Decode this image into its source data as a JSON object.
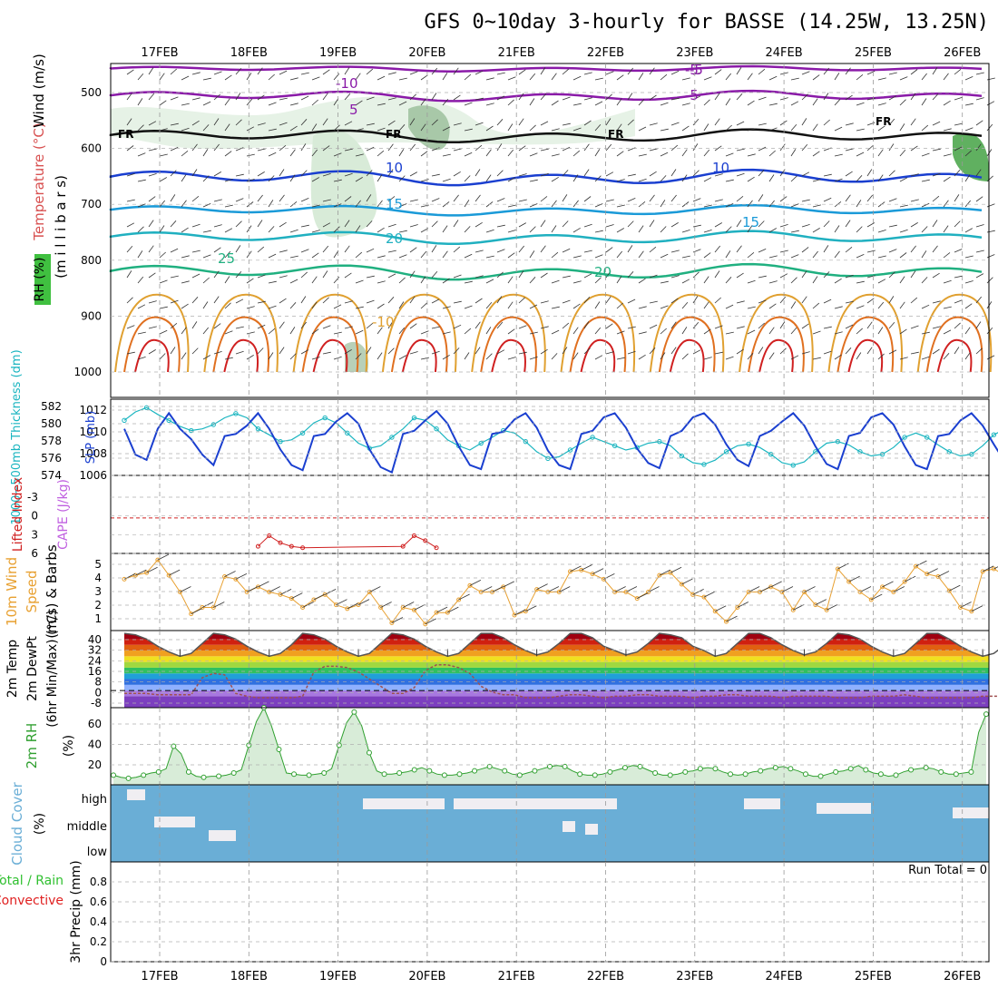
{
  "header": {
    "title": "GFS 0~10day 3-hourly for BASSE (14.25W, 13.25N)"
  },
  "axes": {
    "date_labels": [
      "17FEB",
      "18FEB",
      "19FEB",
      "20FEB",
      "21FEB",
      "22FEB",
      "23FEB",
      "24FEB",
      "25FEB",
      "26FEB"
    ],
    "pressure_ticks": [
      "500",
      "600",
      "700",
      "800",
      "900",
      "1000"
    ],
    "thickness_ticks": [
      "582",
      "580",
      "578",
      "576",
      "574"
    ],
    "slp_ticks": [
      "1012",
      "1010",
      "1008",
      "1006"
    ],
    "li_ticks": [
      "-3",
      "0",
      "3",
      "6"
    ],
    "wind_ticks": [
      "5",
      "4",
      "3",
      "2",
      "1"
    ],
    "temp_ticks": [
      "40",
      "32",
      "24",
      "16",
      "8",
      "0",
      "-8"
    ],
    "rh_ticks": [
      "60",
      "40",
      "20"
    ],
    "cloud_levels": [
      "high",
      "middle",
      "low"
    ],
    "precip_ticks": [
      "0.8",
      "0.6",
      "0.4",
      "0.2",
      "0"
    ]
  },
  "panel_labels": {
    "upper_rh": "RH (%)",
    "upper_temp": "Temperature (°C)",
    "upper_wind": "Wind (m/s)",
    "upper_units": "(m i l l i b a r s)",
    "thickness": "1000~500mb Thickness (dm)",
    "slp": "SLP (mb)",
    "lifted": "Lifted Index",
    "cape": "CAPE (J/kg)",
    "wind10_a": "10m Wind",
    "wind10_b": "Speed",
    "wind10_c": "(m/s) & Barbs",
    "temp_a": "2m Temp",
    "temp_b": "2m DewPt",
    "temp_c": "(6hr Min/Max) (°C)",
    "rh2m_a": "2m RH",
    "rh2m_b": "(%)",
    "cloud_a": "Cloud Cover",
    "cloud_b": "(%)",
    "precip_a": "Total / Rain",
    "precip_b": "Convective",
    "precip_c": "3hr Precip (mm)"
  },
  "contour_labels": {
    "freezing": "FR",
    "temps": [
      "-10",
      "-5",
      "5",
      "10",
      "15",
      "20",
      "25",
      "-10",
      "-5",
      "-5",
      "10",
      "15",
      "20"
    ]
  },
  "run_total": "Run Total = 0",
  "colors": {
    "slp": "#1a3fd0",
    "thickness": "#1ab5c0",
    "lifted_index": "#d02020",
    "wind_speed": "#e8a030",
    "temp_line": "#555555",
    "dewpoint": "#a05050",
    "rh": "#30a030",
    "cloud": "#6aaed6"
  },
  "chart_data": [
    {
      "type": "line",
      "name": "sea level pressure",
      "x_unit": "day offset from 17FEB 00Z",
      "values": [
        1010.5,
        1008.0,
        1007.5,
        1010.5,
        1012.0,
        1010.5,
        1009.5,
        1008.0,
        1007.0,
        1009.8,
        1010.0,
        1010.8,
        1012.0,
        1010.5,
        1008.5,
        1007.0,
        1006.5,
        1009.8,
        1010.0,
        1011.2,
        1012.0,
        1011.0,
        1008.5,
        1006.8,
        1006.3,
        1010.0,
        1010.3,
        1011.3,
        1012.2,
        1011.0,
        1008.8,
        1007.0,
        1006.6,
        1010.0,
        1010.2,
        1011.4,
        1012.0,
        1010.6,
        1008.4,
        1007.0,
        1006.6,
        1010.0,
        1010.3,
        1011.6,
        1012.0,
        1010.6,
        1008.6,
        1007.2,
        1006.7,
        1009.8,
        1010.3,
        1011.6,
        1012.0,
        1010.9,
        1009.0,
        1007.5,
        1006.9,
        1009.8,
        1010.3,
        1011.2,
        1012.0,
        1010.8,
        1008.8,
        1007.1,
        1006.6,
        1009.8,
        1010.1,
        1011.6,
        1012.0,
        1010.9,
        1008.8,
        1007.0,
        1006.6,
        1009.8,
        1010.0,
        1011.3,
        1012.0,
        1010.8,
        1009.0,
        1007.3,
        1007.0,
        1010.0,
        1010.5,
        1011.5
      ],
      "ylim": [
        1006,
        1013
      ]
    },
    {
      "type": "line",
      "name": "1000~500mb thickness",
      "values": [
        580.5,
        581.5,
        582.0,
        581.2,
        580.5,
        579.8,
        579.3,
        579.5,
        580.0,
        580.8,
        581.3,
        580.8,
        579.5,
        578.8,
        578.0,
        578.2,
        579.0,
        580.2,
        580.8,
        580.2,
        579.0,
        577.8,
        577.2,
        577.5,
        578.5,
        579.5,
        580.8,
        580.5,
        579.5,
        578.2,
        577.5,
        577.0,
        577.8,
        578.5,
        579.3,
        579.0,
        578.0,
        576.8,
        576.0,
        576.2,
        577.0,
        577.8,
        578.5,
        578.0,
        577.5,
        577.0,
        577.3,
        577.8,
        578.0,
        577.5,
        576.3,
        575.5,
        575.3,
        575.8,
        576.8,
        577.5,
        577.7,
        577.3,
        576.5,
        575.5,
        575.2,
        575.6,
        576.8,
        577.8,
        578.0,
        577.6,
        576.8,
        576.3,
        576.5,
        577.3,
        578.5,
        579.0,
        578.5,
        577.6,
        576.8,
        576.3,
        576.5,
        577.5,
        578.8,
        579.5,
        580.0,
        579.3,
        578.2,
        577.2
      ],
      "ylim": [
        574,
        583
      ]
    },
    {
      "type": "line",
      "name": "lifted index",
      "values": [
        null,
        null,
        null,
        null,
        null,
        null,
        null,
        null,
        null,
        null,
        null,
        null,
        5.0,
        3.5,
        4.5,
        5.0,
        5.2,
        null,
        null,
        null,
        null,
        null,
        null,
        null,
        null,
        5.0,
        3.5,
        4.2,
        5.2
      ],
      "ylim": [
        -5,
        6
      ]
    },
    {
      "type": "line",
      "name": "10m wind speed",
      "values": [
        4.0,
        4.3,
        4.5,
        5.5,
        4.3,
        3.0,
        1.3,
        1.8,
        1.8,
        4.2,
        4.0,
        3.0,
        3.4,
        3.0,
        2.8,
        2.5,
        1.8,
        2.4,
        2.8,
        2.0,
        1.7,
        2.0,
        3.0,
        1.8,
        0.6,
        1.8,
        1.6,
        0.5,
        1.4,
        1.4,
        2.4,
        3.5,
        3.0,
        3.0,
        3.4,
        1.2,
        1.5,
        3.2,
        3.0,
        3.0,
        4.6,
        4.7,
        4.4,
        4.0,
        3.0,
        3.0,
        2.5,
        3.0,
        4.3,
        4.5,
        3.6,
        2.8,
        2.6,
        1.5,
        0.7,
        1.8,
        3.0,
        3.0,
        3.4,
        3.0,
        1.6,
        3.0,
        2.0,
        1.6,
        4.8,
        3.8,
        3.0,
        2.4,
        3.4,
        3.0,
        3.8,
        5.0,
        4.4,
        4.2,
        3.1,
        1.8,
        1.5,
        4.6,
        4.8,
        4.3,
        3.0,
        2.0,
        2.8,
        1.6
      ],
      "ylim": [
        0,
        6
      ]
    },
    {
      "type": "line",
      "name": "2m temperature",
      "values": [
        40,
        39,
        36,
        31,
        27,
        24,
        26,
        33,
        40,
        39,
        36,
        31,
        27,
        24,
        26,
        32,
        40,
        39,
        36,
        31,
        27,
        24,
        26,
        33,
        40,
        39,
        36,
        31,
        27,
        24,
        26,
        33,
        40,
        40,
        37,
        32,
        28,
        25,
        27,
        33,
        40,
        40,
        37,
        31,
        28,
        25,
        27,
        33,
        40,
        39,
        37,
        31,
        28,
        24,
        26,
        33,
        40,
        40,
        37,
        32,
        28,
        25,
        27,
        33,
        40,
        39,
        36,
        31,
        27,
        24,
        26,
        33,
        40,
        40,
        36,
        31,
        27,
        24,
        26,
        32,
        40,
        39,
        36,
        30,
        26,
        24
      ],
      "ylim": [
        -12,
        42
      ]
    },
    {
      "type": "line",
      "name": "2m dewpoint",
      "values": [
        -2,
        -2,
        -2,
        -3,
        -3,
        -3,
        -3,
        9,
        12,
        11,
        -2,
        -4,
        -5,
        -5,
        -5,
        -5,
        -4,
        13,
        17,
        17,
        16,
        13,
        8,
        3,
        -2,
        -2,
        2,
        14,
        18,
        18,
        16,
        12,
        3,
        -1,
        -3,
        -3,
        -5,
        -5,
        -5,
        -4,
        -3,
        -3,
        -4,
        -5,
        -4,
        -4,
        -3,
        -3,
        -4,
        -4,
        -4,
        -5,
        -4,
        -4,
        -3,
        -3,
        -4,
        -4,
        -4,
        -5,
        -4,
        -4,
        -4,
        -4,
        -5,
        -5,
        -5,
        -4,
        -4,
        -4,
        -3,
        -4,
        -5,
        -5,
        -5,
        -5,
        -5,
        -4,
        -4,
        -4,
        -5,
        -3,
        1,
        10,
        14
      ],
      "ylim": [
        -12,
        42
      ]
    },
    {
      "type": "area",
      "name": "2m relative humidity",
      "values": [
        9,
        7,
        6,
        7,
        9,
        11,
        12,
        15,
        36,
        29,
        12,
        8,
        7,
        8,
        8,
        9,
        11,
        14,
        37,
        59,
        72,
        55,
        33,
        11,
        10,
        9,
        9,
        10,
        11,
        15,
        37,
        58,
        68,
        55,
        30,
        13,
        10,
        10,
        11,
        12,
        14,
        16,
        13,
        10,
        9,
        9,
        10,
        11,
        13,
        15,
        17,
        15,
        13,
        10,
        9,
        11,
        13,
        15,
        17,
        18,
        17,
        13,
        10,
        9,
        9,
        10,
        12,
        14,
        16,
        18,
        17,
        14,
        11,
        9,
        9,
        10,
        12,
        13,
        15,
        16,
        15,
        12,
        10,
        9,
        10,
        12,
        13,
        15,
        16,
        17,
        15,
        13,
        10,
        8,
        8,
        10,
        12,
        13,
        15,
        18,
        14,
        11,
        10,
        8,
        9,
        12,
        14,
        15,
        16,
        15,
        12,
        10,
        10,
        11,
        12,
        49,
        66
      ],
      "ylim": [
        0,
        70
      ]
    },
    {
      "type": "bar",
      "name": "3hr precipitation",
      "values": [],
      "ylim": [
        0,
        1
      ]
    }
  ]
}
